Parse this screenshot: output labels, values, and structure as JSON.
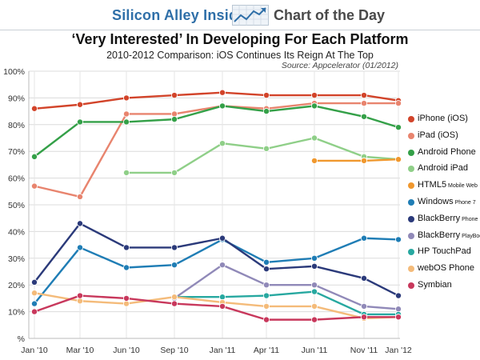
{
  "header": {
    "brand": "Silicon Alley Insider",
    "section": "Chart of the Day",
    "logo_icon": "trend-chart-icon"
  },
  "chart_data": {
    "type": "line",
    "title": "‘Very Interested’ In Developing For Each Platform",
    "subtitle": "2010-2012 Comparison: iOS Continues Its Reign At The Top",
    "source": "Source: Appcelerator (01/2012)",
    "categories": [
      "Jan '10",
      "Mar '10",
      "Jun '10",
      "Sep '10",
      "Jan '11",
      "Apr '11",
      "Jun '11",
      "Nov '11",
      "Jan '12"
    ],
    "y_ticks": [
      "%",
      "10%",
      "20%",
      "30%",
      "40%",
      "50%",
      "60%",
      "70%",
      "80%",
      "90%",
      "100%"
    ],
    "ylim": [
      0,
      100
    ],
    "grid": true,
    "legend_position": "right",
    "series": [
      {
        "name": "iPhone (iOS)",
        "name_sub": "",
        "color": "#d2442a",
        "values": [
          86,
          87.5,
          90,
          91,
          92,
          91,
          91,
          91,
          89
        ]
      },
      {
        "name": "iPad (iOS)",
        "name_sub": "",
        "color": "#e8846e",
        "values": [
          57,
          53,
          84,
          84,
          87,
          86,
          88,
          88,
          88
        ]
      },
      {
        "name": "Android Phone",
        "name_sub": "",
        "color": "#34a048",
        "values": [
          68,
          81,
          81,
          82,
          87,
          85,
          87,
          83,
          79
        ]
      },
      {
        "name": "Android iPad",
        "name_sub": "",
        "color": "#8fcf88",
        "values": [
          null,
          null,
          62,
          62,
          73,
          71,
          75,
          68,
          67
        ]
      },
      {
        "name": "HTML5",
        "name_sub": "Mobile Web",
        "color": "#f0982e",
        "values": [
          null,
          null,
          null,
          null,
          null,
          null,
          66.5,
          66.5,
          67
        ]
      },
      {
        "name": "Windows",
        "name_sub": "Phone 7",
        "color": "#1f7db5",
        "values": [
          13,
          34,
          26.5,
          27.5,
          37,
          28.5,
          30,
          37.5,
          37
        ]
      },
      {
        "name": "BlackBerry",
        "name_sub": "Phone",
        "color": "#2b3a7a",
        "values": [
          21,
          43,
          34,
          34,
          37.5,
          26,
          27,
          22.5,
          16
        ]
      },
      {
        "name": "BlackBerry",
        "name_sub": "PlayBook",
        "color": "#9089b8",
        "values": [
          null,
          null,
          null,
          15,
          27.5,
          20,
          20,
          12,
          11
        ]
      },
      {
        "name": "HP TouchPad",
        "name_sub": "",
        "color": "#27a8a0",
        "values": [
          null,
          null,
          null,
          15.5,
          15.5,
          16,
          17.5,
          9,
          9
        ]
      },
      {
        "name": "webOS Phone",
        "name_sub": "",
        "color": "#f4bb7a",
        "values": [
          17,
          14,
          13,
          15.5,
          13.5,
          12,
          12,
          7.5,
          8
        ]
      },
      {
        "name": "Symbian",
        "name_sub": "",
        "color": "#c8385c",
        "values": [
          10,
          16,
          15,
          13,
          12,
          7,
          7,
          8,
          8
        ]
      }
    ]
  }
}
